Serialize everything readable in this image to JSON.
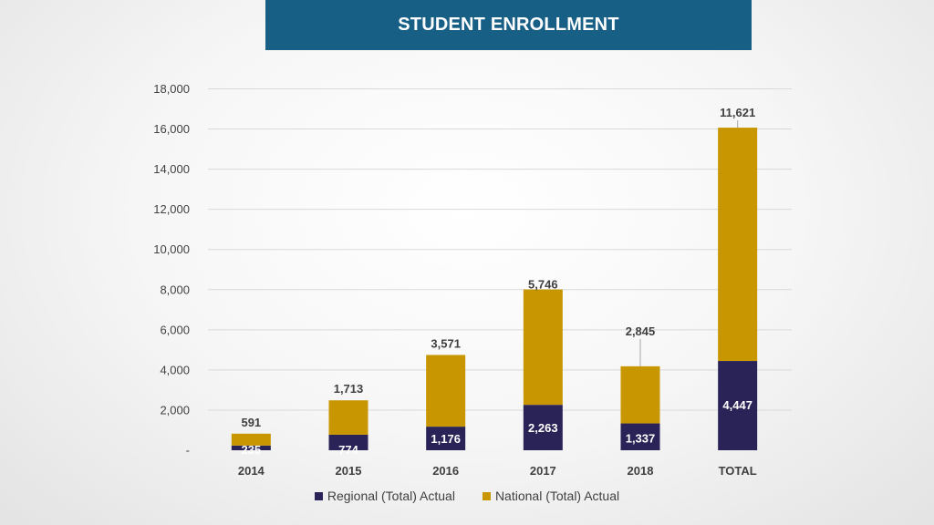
{
  "header": {
    "title": "STUDENT ENROLLMENT"
  },
  "colors": {
    "banner": "#185f86",
    "regional": "#2a2358",
    "national": "#c89600",
    "gridline": "#d9d9d9",
    "text": "#404040"
  },
  "chart_data": {
    "type": "bar",
    "stacked": true,
    "title": "STUDENT ENROLLMENT",
    "xlabel": "",
    "ylabel": "",
    "categories": [
      "2014",
      "2015",
      "2016",
      "2017",
      "2018",
      "TOTAL"
    ],
    "series": [
      {
        "name": "Regional (Total) Actual",
        "values": [
          235,
          774,
          1176,
          2263,
          1337,
          4447
        ],
        "labels": [
          "235",
          "774",
          "1,176",
          "2,263",
          "1,337",
          "4,447"
        ]
      },
      {
        "name": "National (Total) Actual",
        "values": [
          591,
          1713,
          3571,
          5746,
          2845,
          11621
        ],
        "labels": [
          "591",
          "1,713",
          "3,571",
          "5,746",
          "2,845",
          "11,621"
        ]
      }
    ],
    "ylim": [
      0,
      18000
    ],
    "yticks": [
      0,
      2000,
      4000,
      6000,
      8000,
      10000,
      12000,
      14000,
      16000,
      18000
    ],
    "ytick_labels": [
      "-",
      "2,000",
      "4,000",
      "6,000",
      "8,000",
      "10,000",
      "12,000",
      "14,000",
      "16,000",
      "18,000"
    ],
    "grid": true,
    "legend_position": "bottom"
  }
}
